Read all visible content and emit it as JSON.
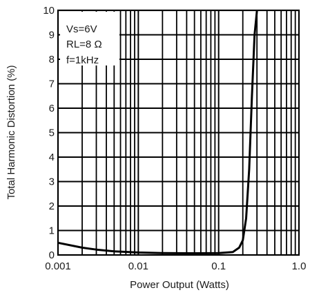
{
  "chart_data": {
    "type": "line",
    "title": "",
    "xlabel": "Power Output (Watts)",
    "ylabel": "Total Harmonic Distortion (%)",
    "xscale": "log",
    "xlim": [
      0.001,
      1.0
    ],
    "ylim": [
      0,
      10
    ],
    "grid": true,
    "x_ticks": [
      {
        "value": 0.001,
        "label": "0.001"
      },
      {
        "value": 0.01,
        "label": "0.01"
      },
      {
        "value": 0.1,
        "label": "0.1"
      },
      {
        "value": 1.0,
        "label": "1.0"
      }
    ],
    "y_ticks": [
      {
        "value": 0,
        "label": "0"
      },
      {
        "value": 1,
        "label": "1"
      },
      {
        "value": 2,
        "label": "2"
      },
      {
        "value": 3,
        "label": "3"
      },
      {
        "value": 4,
        "label": "4"
      },
      {
        "value": 5,
        "label": "5"
      },
      {
        "value": 6,
        "label": "6"
      },
      {
        "value": 7,
        "label": "7"
      },
      {
        "value": 8,
        "label": "8"
      },
      {
        "value": 9,
        "label": "9"
      },
      {
        "value": 10,
        "label": "10"
      }
    ],
    "annotations": [
      "Vs=6V",
      "RL=8 Ω",
      "f=1kHz"
    ],
    "series": [
      {
        "x": [
          0.001,
          0.002,
          0.003,
          0.005,
          0.01,
          0.02,
          0.05,
          0.1,
          0.15,
          0.18,
          0.2,
          0.22,
          0.24,
          0.26,
          0.28,
          0.3
        ],
        "y": [
          0.5,
          0.3,
          0.22,
          0.15,
          0.1,
          0.08,
          0.07,
          0.08,
          0.12,
          0.3,
          0.6,
          1.5,
          3.5,
          6.5,
          9.0,
          10.0
        ]
      }
    ]
  }
}
